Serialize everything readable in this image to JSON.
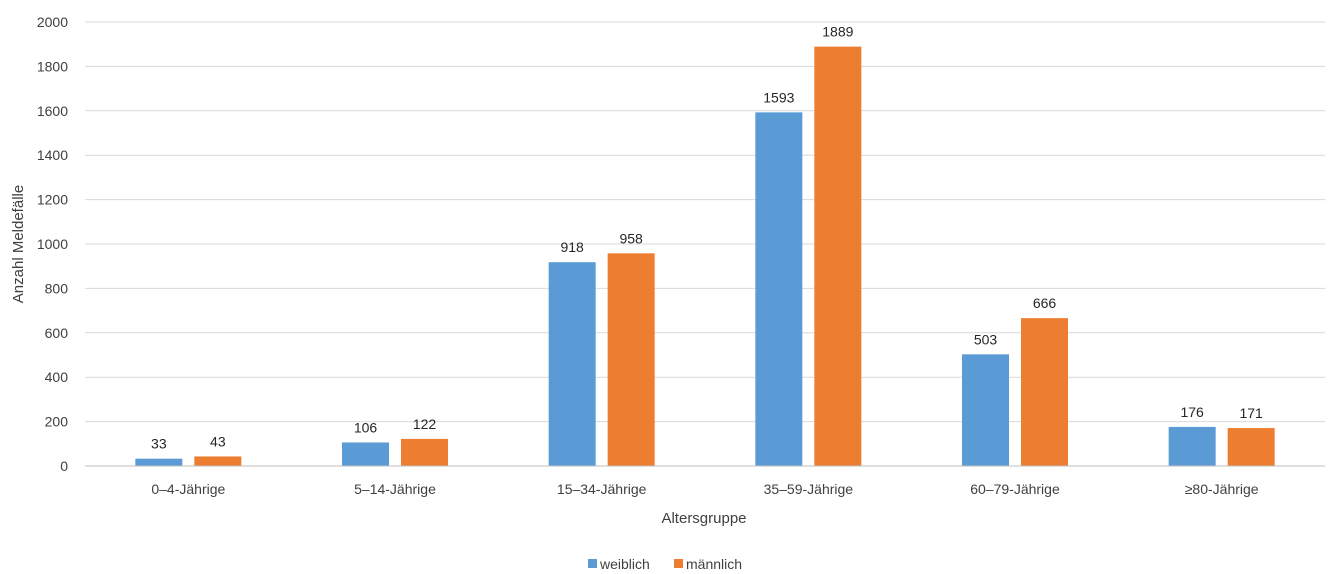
{
  "chart_data": {
    "type": "bar",
    "xlabel": "Altersgruppe",
    "ylabel": "Anzahl Meldefälle",
    "ylim": [
      0,
      2000
    ],
    "yticks": [
      0,
      200,
      400,
      600,
      800,
      1000,
      1200,
      1400,
      1600,
      1800,
      2000
    ],
    "grid": true,
    "legend_position": "bottom",
    "data_labels": true,
    "categories": [
      "0–4-Jährige",
      "5–14-Jährige",
      "15–34-Jährige",
      "35–59-Jährige",
      "60–79-Jährige",
      "≥80-Jährige"
    ],
    "series": [
      {
        "name": "weiblich",
        "color": "#5B9BD5",
        "values": [
          33,
          106,
          918,
          1593,
          503,
          176
        ]
      },
      {
        "name": "männlich",
        "color": "#ED7D31",
        "values": [
          43,
          122,
          958,
          1889,
          666,
          171
        ]
      }
    ]
  }
}
